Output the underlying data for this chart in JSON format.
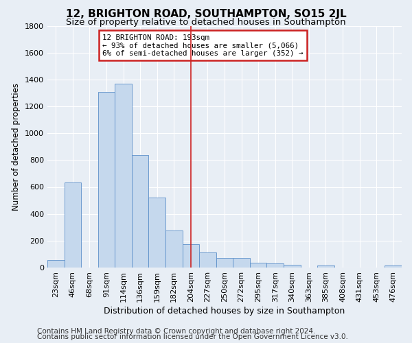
{
  "title": "12, BRIGHTON ROAD, SOUTHAMPTON, SO15 2JL",
  "subtitle": "Size of property relative to detached houses in Southampton",
  "xlabel": "Distribution of detached houses by size in Southampton",
  "ylabel": "Number of detached properties",
  "bar_color": "#c5d8ed",
  "bar_edge_color": "#5b8fc9",
  "background_color": "#e8eef5",
  "plot_bg_color": "#e8eef5",
  "vline_color": "#cc2222",
  "vline_x": 8.0,
  "annotation_box_edge": "#cc2222",
  "annotation_line1": "12 BRIGHTON ROAD: 193sqm",
  "annotation_line2": "← 93% of detached houses are smaller (5,066)",
  "annotation_line3": "6% of semi-detached houses are larger (352) →",
  "ylim": [
    0,
    1800
  ],
  "categories": [
    "23sqm",
    "46sqm",
    "68sqm",
    "91sqm",
    "114sqm",
    "136sqm",
    "159sqm",
    "182sqm",
    "204sqm",
    "227sqm",
    "250sqm",
    "272sqm",
    "295sqm",
    "317sqm",
    "340sqm",
    "363sqm",
    "385sqm",
    "408sqm",
    "431sqm",
    "453sqm",
    "476sqm"
  ],
  "values": [
    55,
    635,
    0,
    1305,
    1370,
    840,
    520,
    275,
    175,
    110,
    70,
    70,
    35,
    30,
    20,
    0,
    15,
    0,
    0,
    0,
    15
  ],
  "footer1": "Contains HM Land Registry data © Crown copyright and database right 2024.",
  "footer2": "Contains public sector information licensed under the Open Government Licence v3.0.",
  "title_fontsize": 11,
  "subtitle_fontsize": 9.5,
  "xlabel_fontsize": 9,
  "ylabel_fontsize": 8.5,
  "tick_fontsize": 8,
  "footer_fontsize": 7.5
}
